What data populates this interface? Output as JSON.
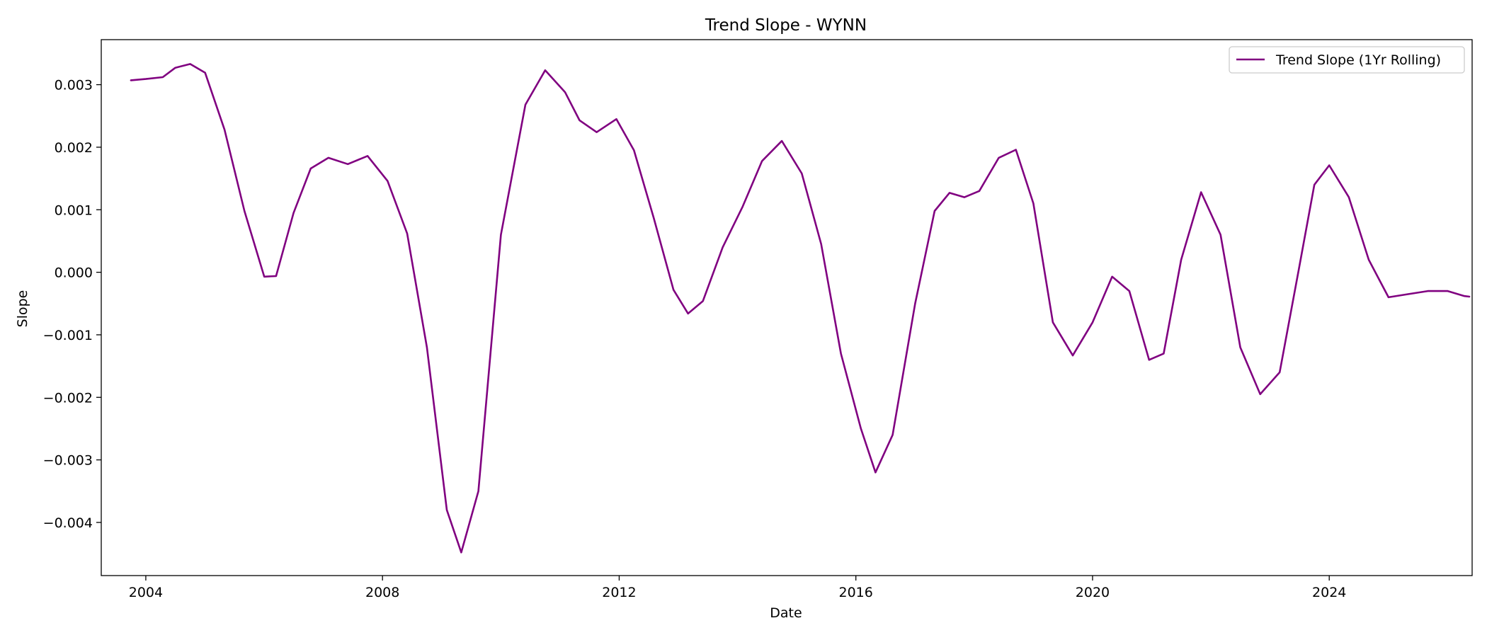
{
  "chart_data": {
    "type": "line",
    "title": "Trend Slope - WYNN",
    "xlabel": "Date",
    "ylabel": "Slope",
    "xlim": [
      "2003-04-01",
      "2026-06-01"
    ],
    "ylim": [
      -0.00485,
      0.00372
    ],
    "x_ticks": [
      "2004",
      "2008",
      "2012",
      "2016",
      "2020",
      "2024"
    ],
    "y_ticks": [
      0.003,
      0.002,
      0.001,
      0.0,
      -0.001,
      -0.002,
      -0.003,
      -0.004
    ],
    "y_tick_labels": [
      "0.003",
      "0.002",
      "0.001",
      "0.000",
      "−0.001",
      "−0.002",
      "−0.003",
      "−0.004"
    ],
    "grid": false,
    "legend": "top-right",
    "line_color": "#800080",
    "series": [
      {
        "name": "Trend Slope (1Yr Rolling)",
        "color": "#800080",
        "points": [
          [
            "2003-10-01",
            0.00307
          ],
          [
            "2004-01-01",
            0.00309
          ],
          [
            "2004-04-15",
            0.00312
          ],
          [
            "2004-07-01",
            0.00327
          ],
          [
            "2004-10-01",
            0.00333
          ],
          [
            "2005-01-01",
            0.00319
          ],
          [
            "2005-05-01",
            0.00228
          ],
          [
            "2005-09-01",
            0.00098
          ],
          [
            "2006-01-01",
            -7e-05
          ],
          [
            "2006-03-15",
            -6e-05
          ],
          [
            "2006-07-01",
            0.00095
          ],
          [
            "2006-10-15",
            0.00166
          ],
          [
            "2007-02-01",
            0.00183
          ],
          [
            "2007-06-01",
            0.00173
          ],
          [
            "2007-10-01",
            0.00186
          ],
          [
            "2008-02-01",
            0.00146
          ],
          [
            "2008-06-01",
            0.00062
          ],
          [
            "2008-10-01",
            -0.0012
          ],
          [
            "2009-02-01",
            -0.0038
          ],
          [
            "2009-05-01",
            -0.00448
          ],
          [
            "2009-08-15",
            -0.0035
          ],
          [
            "2010-01-01",
            0.0006
          ],
          [
            "2010-06-01",
            0.00268
          ],
          [
            "2010-10-01",
            0.00323
          ],
          [
            "2011-02-01",
            0.00288
          ],
          [
            "2011-05-01",
            0.00243
          ],
          [
            "2011-08-15",
            0.00224
          ],
          [
            "2011-12-15",
            0.00245
          ],
          [
            "2012-04-01",
            0.00195
          ],
          [
            "2012-08-01",
            0.00087
          ],
          [
            "2012-12-01",
            -0.00028
          ],
          [
            "2013-03-01",
            -0.00066
          ],
          [
            "2013-06-01",
            -0.00046
          ],
          [
            "2013-10-01",
            0.0004
          ],
          [
            "2014-02-01",
            0.00105
          ],
          [
            "2014-06-01",
            0.00178
          ],
          [
            "2014-10-01",
            0.0021
          ],
          [
            "2015-02-01",
            0.00158
          ],
          [
            "2015-06-01",
            0.00045
          ],
          [
            "2015-10-01",
            -0.0013
          ],
          [
            "2016-02-01",
            -0.0025
          ],
          [
            "2016-05-01",
            -0.0032
          ],
          [
            "2016-08-15",
            -0.0026
          ],
          [
            "2017-01-01",
            -0.0005
          ],
          [
            "2017-05-01",
            0.00098
          ],
          [
            "2017-08-01",
            0.00127
          ],
          [
            "2017-11-01",
            0.0012
          ],
          [
            "2018-02-01",
            0.0013
          ],
          [
            "2018-06-01",
            0.00183
          ],
          [
            "2018-09-15",
            0.00196
          ],
          [
            "2019-01-01",
            0.0011
          ],
          [
            "2019-05-01",
            -0.0008
          ],
          [
            "2019-09-01",
            -0.00133
          ],
          [
            "2020-01-01",
            -0.0008
          ],
          [
            "2020-05-01",
            -7e-05
          ],
          [
            "2020-08-15",
            -0.0003
          ],
          [
            "2020-12-15",
            -0.0014
          ],
          [
            "2021-03-15",
            -0.0013
          ],
          [
            "2021-07-01",
            0.0002
          ],
          [
            "2021-11-01",
            0.00128
          ],
          [
            "2022-03-01",
            0.0006
          ],
          [
            "2022-07-01",
            -0.0012
          ],
          [
            "2022-11-01",
            -0.00195
          ],
          [
            "2023-03-01",
            -0.0016
          ],
          [
            "2023-07-01",
            0.0001
          ],
          [
            "2023-10-01",
            0.0014
          ],
          [
            "2024-01-01",
            0.00171
          ],
          [
            "2024-05-01",
            0.0012
          ],
          [
            "2024-09-01",
            0.0002
          ],
          [
            "2025-01-01",
            -0.0004
          ],
          [
            "2025-05-01",
            -0.00035
          ],
          [
            "2025-09-01",
            -0.0003
          ],
          [
            "2026-01-01",
            -0.0003
          ],
          [
            "2026-04-15",
            -0.00038
          ],
          [
            "2026-05-15",
            -0.00039
          ]
        ]
      }
    ]
  }
}
